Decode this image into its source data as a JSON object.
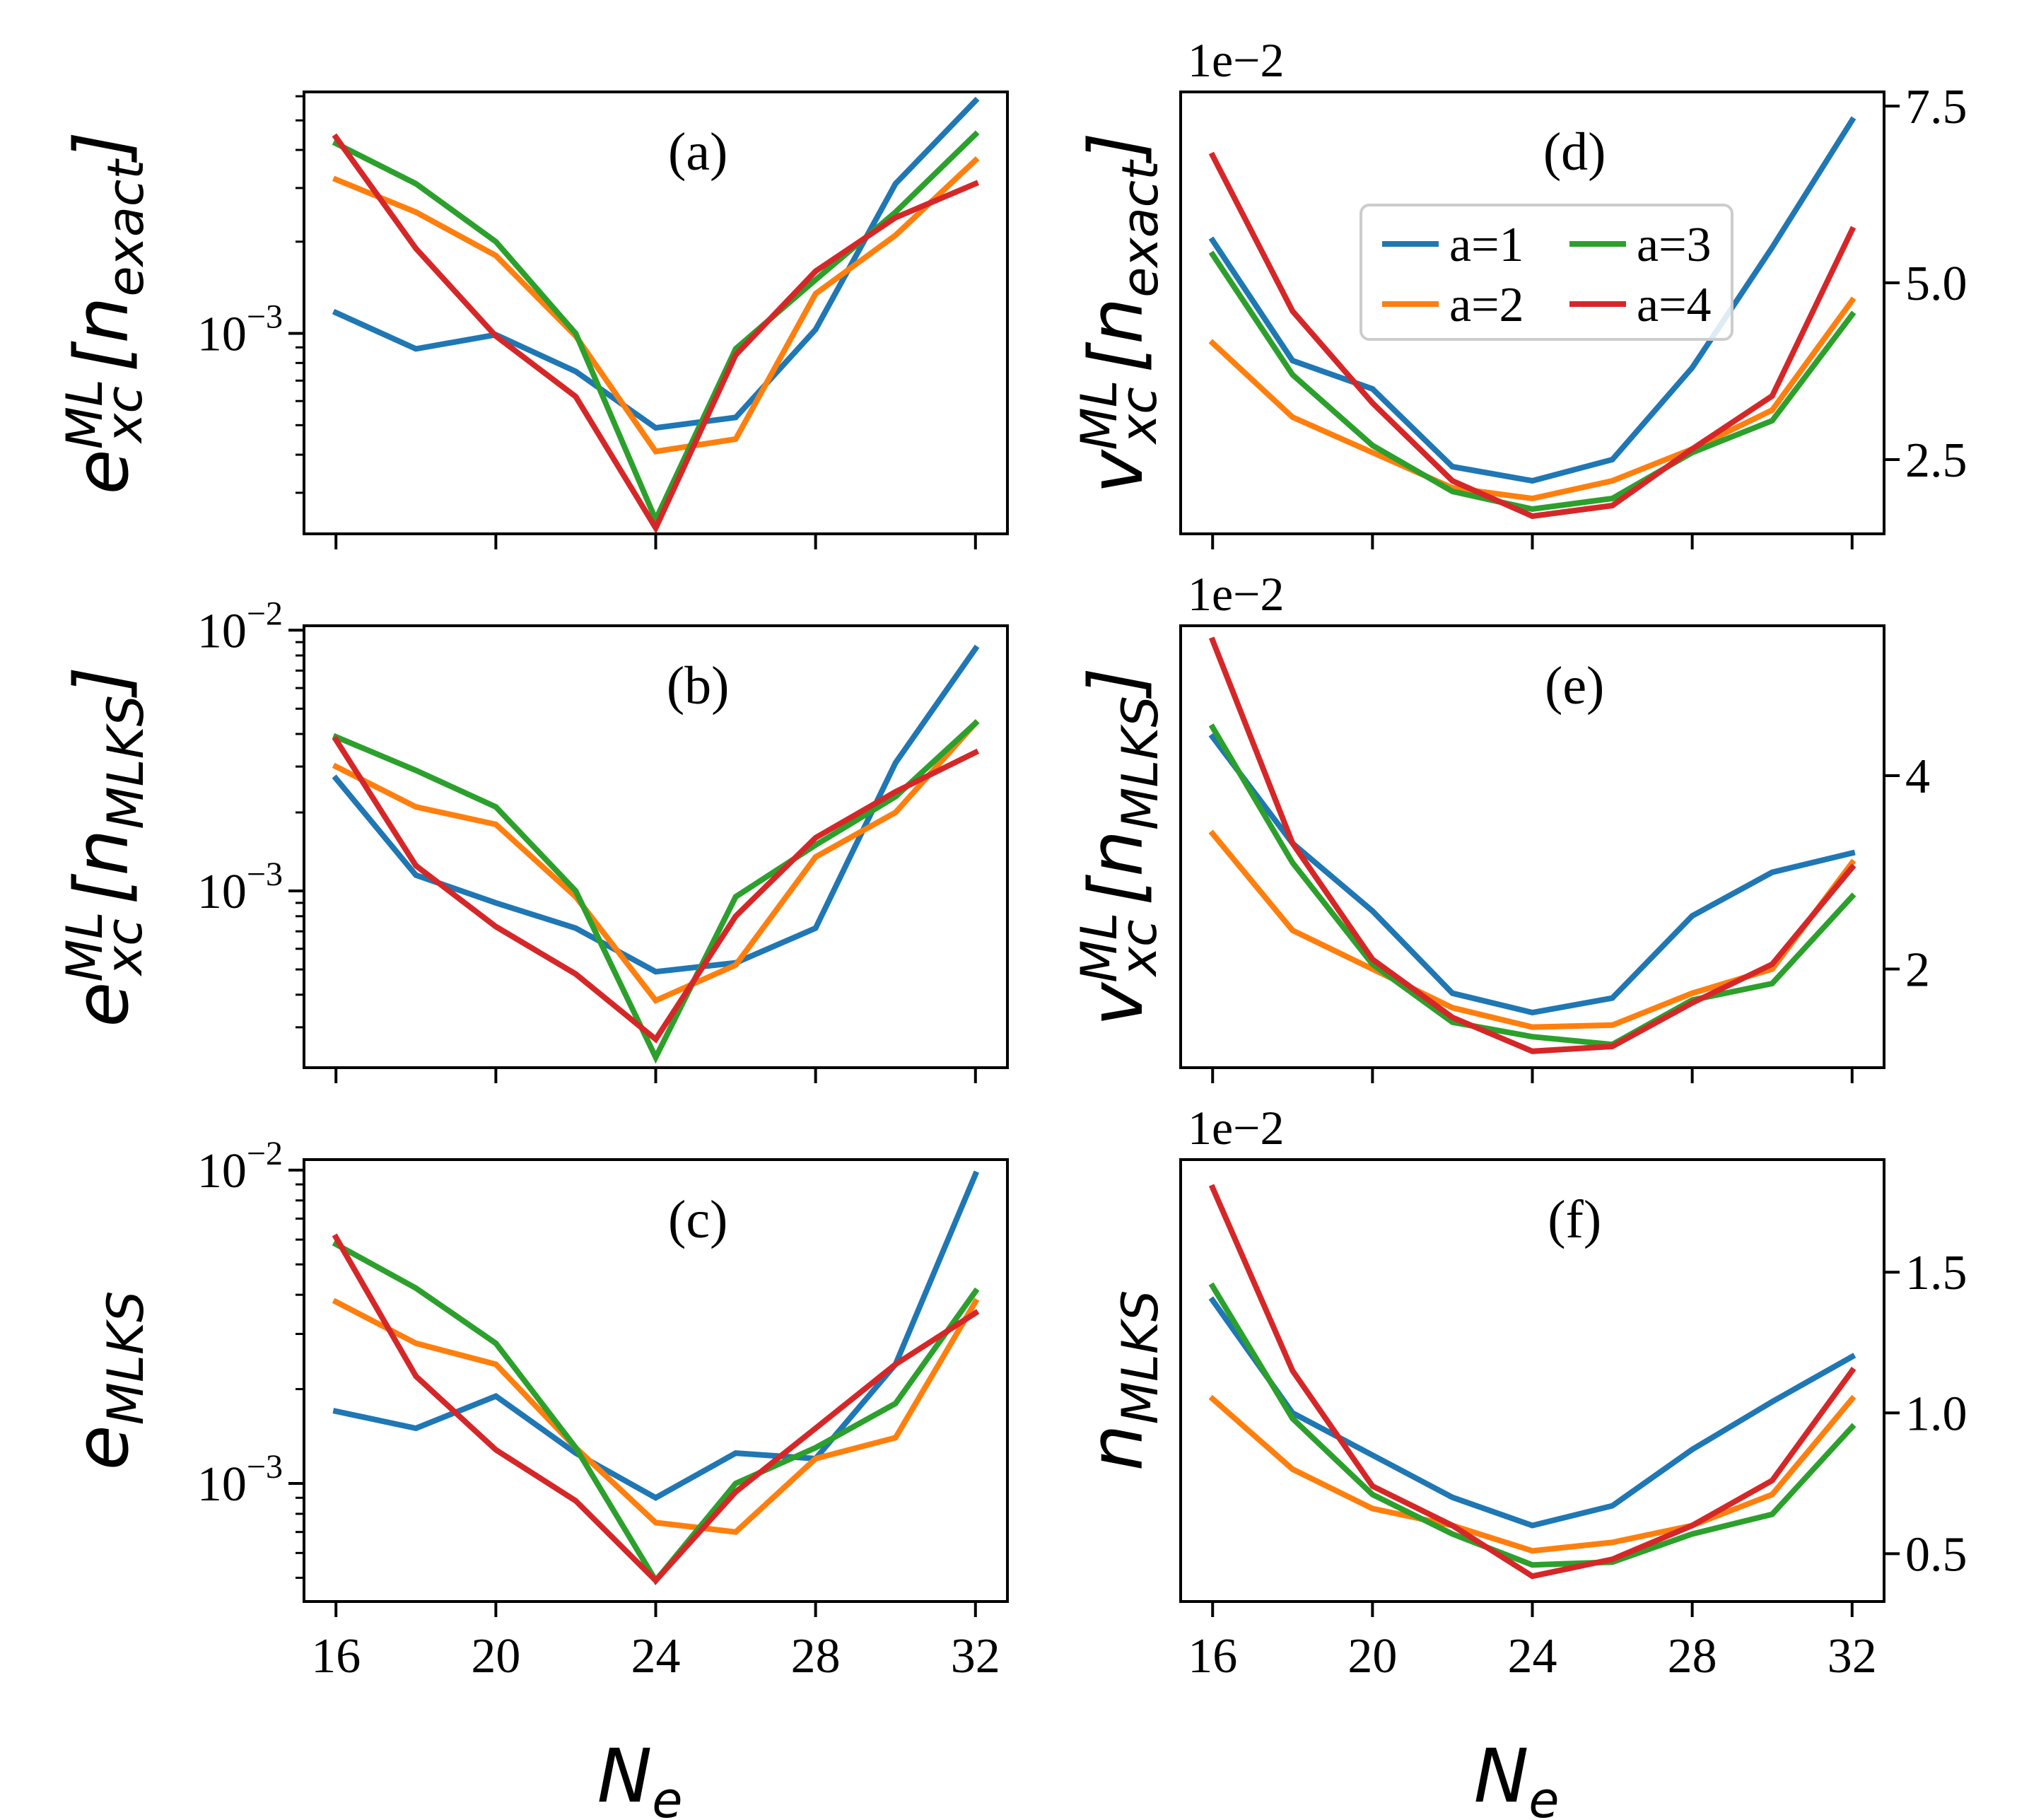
{
  "figure": {
    "shared_xlabel_main": "N",
    "shared_xlabel_sub": "e",
    "x_ticks": [
      16,
      20,
      24,
      28,
      32
    ]
  },
  "legend": {
    "entries": [
      {
        "name": "a=1",
        "color": "#1f77b4"
      },
      {
        "name": "a=2",
        "color": "#ff7f0e"
      },
      {
        "name": "a=3",
        "color": "#2ca02c"
      },
      {
        "name": "a=4",
        "color": "#d62728"
      }
    ]
  },
  "chart_data": [
    {
      "id": "a",
      "type": "line",
      "tag": "(a)",
      "scale": "log",
      "ylabel": {
        "main": "e",
        "sup": "ML",
        "sub": "xc",
        "arg": "n",
        "argsub": "exact"
      },
      "xlim": [
        15.2,
        32.8
      ],
      "ylim": [
        0.00022,
        0.0062
      ],
      "y_ticks": [
        {
          "value": 0.001,
          "base": "10",
          "exp": "−3"
        }
      ],
      "show_xticklabels": false,
      "x": [
        16,
        18,
        20,
        22,
        24,
        26,
        28,
        30,
        32
      ],
      "series": [
        {
          "name": "a=1",
          "color": "#1f77b4",
          "values": [
            0.00117,
            0.00089,
            0.00099,
            0.00075,
            0.00049,
            0.00053,
            0.00103,
            0.0031,
            0.0058
          ]
        },
        {
          "name": "a=2",
          "color": "#ff7f0e",
          "values": [
            0.0032,
            0.0025,
            0.0018,
            0.00098,
            0.00041,
            0.00045,
            0.00135,
            0.0021,
            0.0037
          ]
        },
        {
          "name": "a=3",
          "color": "#2ca02c",
          "values": [
            0.0042,
            0.0031,
            0.002,
            0.001,
            0.000245,
            0.00089,
            0.0015,
            0.0025,
            0.0045
          ]
        },
        {
          "name": "a=4",
          "color": "#d62728",
          "values": [
            0.0044,
            0.0019,
            0.00098,
            0.00062,
            0.00023,
            0.00085,
            0.0016,
            0.0024,
            0.0031
          ]
        }
      ]
    },
    {
      "id": "b",
      "type": "line",
      "tag": "(b)",
      "scale": "log",
      "ylabel": {
        "main": "e",
        "sup": "ML",
        "sub": "xc",
        "arg": "n",
        "argsub": "MLKS"
      },
      "xlim": [
        15.2,
        32.8
      ],
      "ylim": [
        0.00021,
        0.0104
      ],
      "y_ticks": [
        {
          "value": 0.001,
          "base": "10",
          "exp": "−3"
        },
        {
          "value": 0.01,
          "base": "10",
          "exp": "−2"
        }
      ],
      "show_xticklabels": false,
      "x": [
        16,
        18,
        20,
        22,
        24,
        26,
        28,
        30,
        32
      ],
      "series": [
        {
          "name": "a=1",
          "color": "#1f77b4",
          "values": [
            0.0027,
            0.00115,
            0.0009,
            0.00072,
            0.00049,
            0.00053,
            0.00072,
            0.0031,
            0.0085
          ]
        },
        {
          "name": "a=2",
          "color": "#ff7f0e",
          "values": [
            0.003,
            0.0021,
            0.0018,
            0.00095,
            0.00038,
            0.00052,
            0.00135,
            0.002,
            0.0044
          ]
        },
        {
          "name": "a=3",
          "color": "#2ca02c",
          "values": [
            0.0039,
            0.0029,
            0.0021,
            0.001,
            0.00023,
            0.00095,
            0.0015,
            0.0023,
            0.0044
          ]
        },
        {
          "name": "a=4",
          "color": "#d62728",
          "values": [
            0.0038,
            0.00125,
            0.00073,
            0.00048,
            0.00027,
            0.0008,
            0.0016,
            0.0024,
            0.0034
          ]
        }
      ]
    },
    {
      "id": "c",
      "type": "line",
      "tag": "(c)",
      "scale": "log",
      "ylabel": {
        "main": "e",
        "sub": "MLKS"
      },
      "xlim": [
        15.2,
        32.8
      ],
      "ylim": [
        0.00042,
        0.0108
      ],
      "y_ticks": [
        {
          "value": 0.001,
          "base": "10",
          "exp": "−3"
        },
        {
          "value": 0.01,
          "base": "10",
          "exp": "−2"
        }
      ],
      "show_xticklabels": true,
      "x": [
        16,
        18,
        20,
        22,
        24,
        26,
        28,
        30,
        32
      ],
      "series": [
        {
          "name": "a=1",
          "color": "#1f77b4",
          "values": [
            0.0017,
            0.0015,
            0.0019,
            0.00125,
            0.0009,
            0.00125,
            0.0012,
            0.0024,
            0.0097
          ]
        },
        {
          "name": "a=2",
          "color": "#ff7f0e",
          "values": [
            0.0038,
            0.0028,
            0.0024,
            0.0013,
            0.00075,
            0.0007,
            0.0012,
            0.0014,
            0.0038
          ]
        },
        {
          "name": "a=3",
          "color": "#2ca02c",
          "values": [
            0.0058,
            0.0042,
            0.0028,
            0.0013,
            0.00049,
            0.001,
            0.0013,
            0.0018,
            0.0041
          ]
        },
        {
          "name": "a=4",
          "color": "#d62728",
          "values": [
            0.0061,
            0.0022,
            0.00128,
            0.00088,
            0.00049,
            0.00094,
            0.0015,
            0.0024,
            0.0035
          ]
        }
      ]
    },
    {
      "id": "d",
      "type": "line",
      "tag": "(d)",
      "scale": "linear",
      "offset_text": "1e−2",
      "ylabel": {
        "main": "v",
        "sup": "ML",
        "sub": "xc",
        "arg": "n",
        "argsub": "exact"
      },
      "xlim": [
        15.2,
        32.8
      ],
      "ylim": [
        1.45,
        7.7
      ],
      "y_ticks": [
        {
          "value": 2.5,
          "label": "2.5"
        },
        {
          "value": 5.0,
          "label": "5.0"
        },
        {
          "value": 7.5,
          "label": "7.5"
        }
      ],
      "show_xticklabels": false,
      "x": [
        16,
        18,
        20,
        22,
        24,
        26,
        28,
        30,
        32
      ],
      "series": [
        {
          "name": "a=1",
          "color": "#1f77b4",
          "values": [
            5.6,
            3.9,
            3.5,
            2.4,
            2.2,
            2.5,
            3.8,
            5.5,
            7.3
          ]
        },
        {
          "name": "a=2",
          "color": "#ff7f0e",
          "values": [
            4.15,
            3.1,
            2.6,
            2.1,
            1.95,
            2.2,
            2.65,
            3.2,
            4.75
          ]
        },
        {
          "name": "a=3",
          "color": "#2ca02c",
          "values": [
            5.4,
            3.7,
            2.7,
            2.05,
            1.8,
            1.95,
            2.6,
            3.05,
            4.55
          ]
        },
        {
          "name": "a=4",
          "color": "#d62728",
          "values": [
            6.8,
            4.6,
            3.3,
            2.2,
            1.7,
            1.85,
            2.65,
            3.4,
            5.75
          ]
        }
      ]
    },
    {
      "id": "e",
      "type": "line",
      "tag": "(e)",
      "scale": "linear",
      "offset_text": "1e−2",
      "ylabel": {
        "main": "v",
        "sup": "ML",
        "sub": "xc",
        "arg": "n",
        "argsub": "MLKS"
      },
      "xlim": [
        15.2,
        32.8
      ],
      "ylim": [
        0.98,
        5.55
      ],
      "y_ticks": [
        {
          "value": 2,
          "label": "2"
        },
        {
          "value": 4,
          "label": "4"
        }
      ],
      "show_xticklabels": false,
      "x": [
        16,
        18,
        20,
        22,
        24,
        26,
        28,
        30,
        32
      ],
      "series": [
        {
          "name": "a=1",
          "color": "#1f77b4",
          "values": [
            4.4,
            3.3,
            2.6,
            1.75,
            1.55,
            1.7,
            2.55,
            3.0,
            3.2
          ]
        },
        {
          "name": "a=2",
          "color": "#ff7f0e",
          "values": [
            3.4,
            2.4,
            2.0,
            1.6,
            1.4,
            1.42,
            1.75,
            2.0,
            3.1
          ]
        },
        {
          "name": "a=3",
          "color": "#2ca02c",
          "values": [
            4.5,
            3.1,
            2.05,
            1.45,
            1.3,
            1.22,
            1.68,
            1.85,
            2.75
          ]
        },
        {
          "name": "a=4",
          "color": "#d62728",
          "values": [
            5.4,
            3.3,
            2.1,
            1.5,
            1.15,
            1.2,
            1.65,
            2.05,
            3.05
          ]
        }
      ]
    },
    {
      "id": "f",
      "type": "line",
      "tag": "(f)",
      "scale": "linear",
      "offset_text": "1e−2",
      "ylabel": {
        "main": "n",
        "sub": "MLKS"
      },
      "xlim": [
        15.2,
        32.8
      ],
      "ylim": [
        0.33,
        1.9
      ],
      "y_ticks": [
        {
          "value": 0.5,
          "label": "0.5"
        },
        {
          "value": 1.0,
          "label": "1.0"
        },
        {
          "value": 1.5,
          "label": "1.5"
        }
      ],
      "show_xticklabels": true,
      "x": [
        16,
        18,
        20,
        22,
        24,
        26,
        28,
        30,
        32
      ],
      "series": [
        {
          "name": "a=1",
          "color": "#1f77b4",
          "values": [
            1.4,
            1.0,
            0.85,
            0.7,
            0.6,
            0.67,
            0.87,
            1.04,
            1.2
          ]
        },
        {
          "name": "a=2",
          "color": "#ff7f0e",
          "values": [
            1.05,
            0.8,
            0.66,
            0.6,
            0.51,
            0.54,
            0.6,
            0.71,
            1.05
          ]
        },
        {
          "name": "a=3",
          "color": "#2ca02c",
          "values": [
            1.45,
            0.98,
            0.71,
            0.57,
            0.46,
            0.47,
            0.57,
            0.64,
            0.95
          ]
        },
        {
          "name": "a=4",
          "color": "#d62728",
          "values": [
            1.8,
            1.15,
            0.74,
            0.6,
            0.42,
            0.48,
            0.6,
            0.76,
            1.15
          ]
        }
      ]
    }
  ]
}
